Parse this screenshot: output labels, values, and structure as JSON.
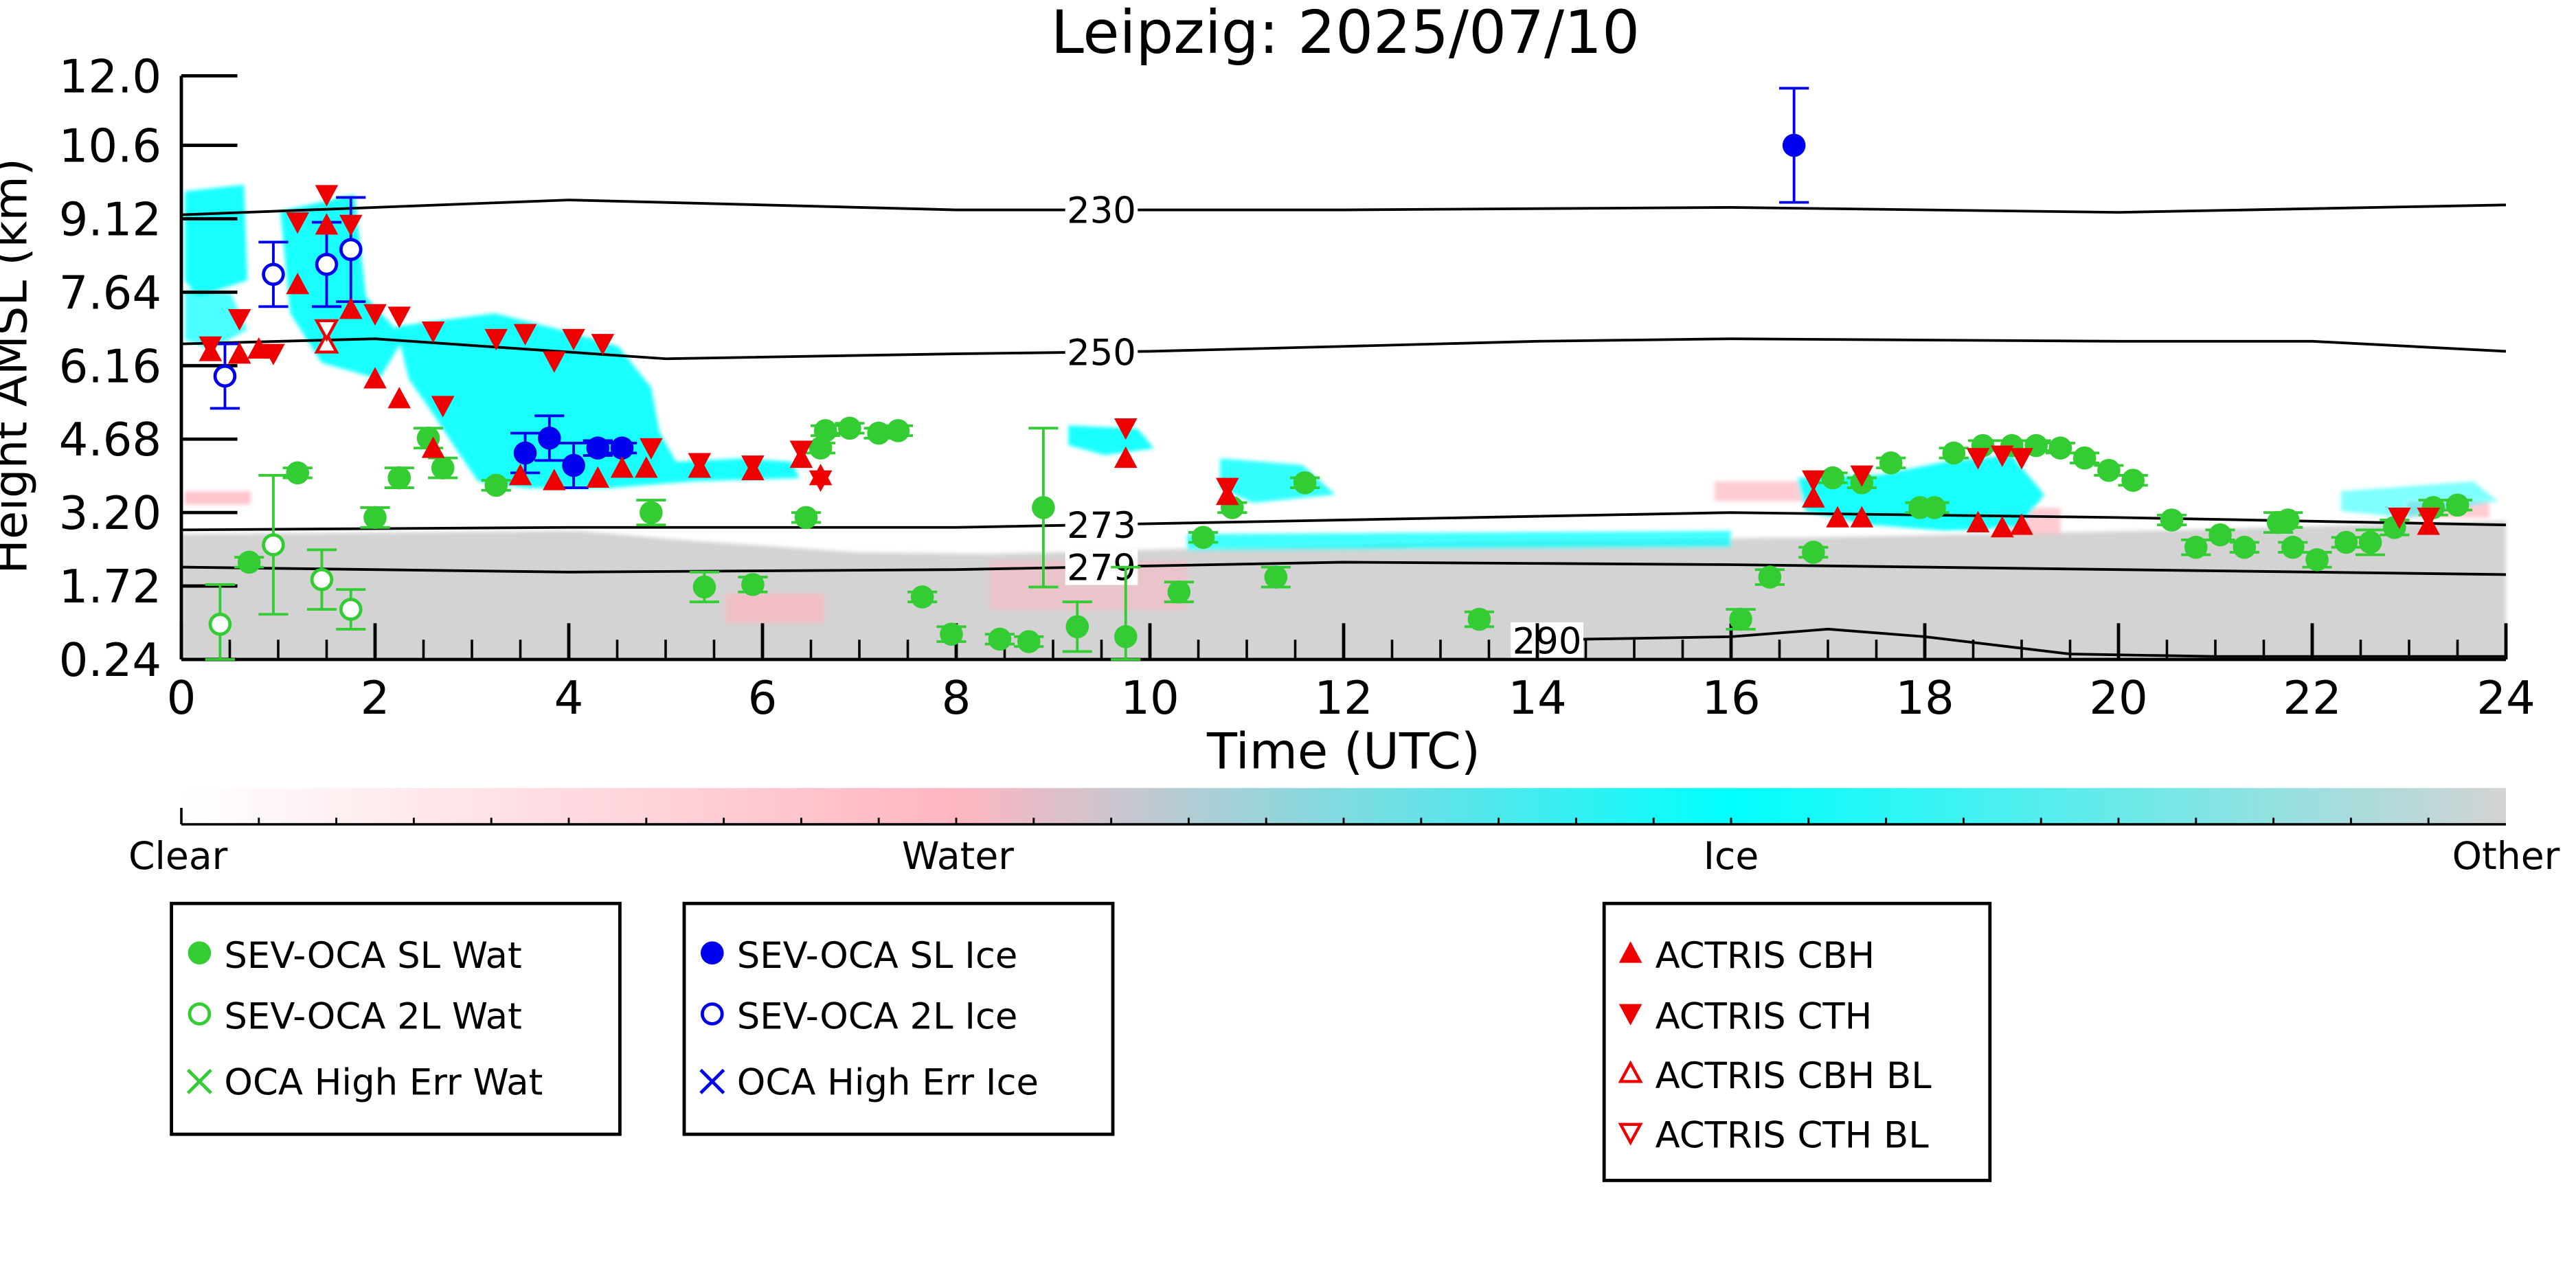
{
  "chart_data": {
    "type": "scatter",
    "title": "Leipzig: 2025/07/10",
    "xlabel": "Time (UTC)",
    "ylabel": "Height AMSL (km)",
    "xlim": [
      0,
      24
    ],
    "ylim": [
      0.24,
      12.0
    ],
    "xticks": [
      0,
      2,
      4,
      6,
      8,
      10,
      12,
      14,
      16,
      18,
      20,
      22,
      24
    ],
    "yticks": [
      0.24,
      1.72,
      3.2,
      4.68,
      6.16,
      7.64,
      9.12,
      10.6,
      12.0
    ],
    "ytick_labels": [
      "0.24",
      "1.72",
      "3.20",
      "4.68",
      "6.16",
      "7.64",
      "9.12",
      "10.6",
      "12.0"
    ],
    "grid": false,
    "colorbar": {
      "labels": [
        "Clear",
        "Water",
        "Ice",
        "Other"
      ],
      "colors": [
        "#ffffff",
        "#ffb6c1",
        "#00ffff",
        "#d3d3d3"
      ]
    },
    "isotherms": [
      {
        "label": "230",
        "label_x": 9.5,
        "points": [
          [
            0,
            9.2
          ],
          [
            4,
            9.5
          ],
          [
            8,
            9.3
          ],
          [
            12,
            9.3
          ],
          [
            16,
            9.35
          ],
          [
            20,
            9.25
          ],
          [
            24,
            9.4
          ]
        ]
      },
      {
        "label": "250",
        "label_x": 9.5,
        "points": [
          [
            0,
            6.6
          ],
          [
            2,
            6.7
          ],
          [
            5,
            6.3
          ],
          [
            8,
            6.4
          ],
          [
            10,
            6.45
          ],
          [
            12,
            6.55
          ],
          [
            14,
            6.65
          ],
          [
            16,
            6.7
          ],
          [
            20,
            6.65
          ],
          [
            22,
            6.65
          ],
          [
            24,
            6.45
          ]
        ]
      },
      {
        "label": "273",
        "label_x": 9.5,
        "points": [
          [
            0,
            2.85
          ],
          [
            4,
            2.9
          ],
          [
            8,
            2.9
          ],
          [
            12,
            3.05
          ],
          [
            16,
            3.2
          ],
          [
            20,
            3.1
          ],
          [
            24,
            2.95
          ]
        ]
      },
      {
        "label": "279",
        "label_x": 9.5,
        "points": [
          [
            0,
            2.1
          ],
          [
            4,
            2.0
          ],
          [
            8,
            2.05
          ],
          [
            12,
            2.2
          ],
          [
            16,
            2.15
          ],
          [
            20,
            2.05
          ],
          [
            24,
            1.95
          ]
        ]
      },
      {
        "label": "290",
        "label_x": 14.1,
        "points": [
          [
            13.8,
            0.6
          ],
          [
            14.5,
            0.65
          ],
          [
            16,
            0.7
          ],
          [
            17,
            0.85
          ],
          [
            18,
            0.7
          ],
          [
            19.5,
            0.35
          ],
          [
            21,
            0.3
          ],
          [
            24,
            0.3
          ]
        ]
      }
    ],
    "series": [
      {
        "name": "SEV-OCA SL Wat",
        "marker": "circle-filled",
        "color": "#33cc33",
        "points": [
          {
            "x": 0.7,
            "y": 2.2,
            "err": 0.1
          },
          {
            "x": 1.2,
            "y": 4.0,
            "err": 0.1
          },
          {
            "x": 2.0,
            "y": 3.1,
            "err": 0.2
          },
          {
            "x": 2.25,
            "y": 3.9,
            "err": 0.2
          },
          {
            "x": 2.55,
            "y": 4.7,
            "err": 0.2
          },
          {
            "x": 2.7,
            "y": 4.1,
            "err": 0.2
          },
          {
            "x": 3.25,
            "y": 3.75,
            "err": 0.1
          },
          {
            "x": 4.85,
            "y": 3.2,
            "err": 0.25
          },
          {
            "x": 5.4,
            "y": 1.7,
            "err": 0.3
          },
          {
            "x": 5.9,
            "y": 1.75,
            "err": 0.15
          },
          {
            "x": 6.45,
            "y": 3.1,
            "err": 0.1
          },
          {
            "x": 6.6,
            "y": 4.5,
            "err": 0.1
          },
          {
            "x": 6.65,
            "y": 4.85,
            "err": 0.1
          },
          {
            "x": 6.9,
            "y": 4.9,
            "err": 0.1
          },
          {
            "x": 7.2,
            "y": 4.8,
            "err": 0.1
          },
          {
            "x": 7.4,
            "y": 4.85,
            "err": 0.1
          },
          {
            "x": 7.65,
            "y": 1.5,
            "err": 0.1
          },
          {
            "x": 7.95,
            "y": 0.75,
            "err": 0.15
          },
          {
            "x": 8.45,
            "y": 0.65,
            "err": 0.1
          },
          {
            "x": 8.75,
            "y": 0.6,
            "err": 0.1
          },
          {
            "x": 8.9,
            "y": 3.3,
            "err": 1.6
          },
          {
            "x": 9.25,
            "y": 0.9,
            "err": 0.5
          },
          {
            "x": 9.75,
            "y": 0.7,
            "err": 1.4
          },
          {
            "x": 10.3,
            "y": 1.6,
            "err": 0.2
          },
          {
            "x": 10.55,
            "y": 2.7,
            "err": 0.1
          },
          {
            "x": 10.85,
            "y": 3.3,
            "err": 0.1
          },
          {
            "x": 11.3,
            "y": 1.9,
            "err": 0.2
          },
          {
            "x": 11.6,
            "y": 3.8,
            "err": 0.1
          },
          {
            "x": 13.4,
            "y": 1.05,
            "err": 0.15
          },
          {
            "x": 16.1,
            "y": 1.05,
            "err": 0.2
          },
          {
            "x": 16.4,
            "y": 1.9,
            "err": 0.15
          },
          {
            "x": 16.85,
            "y": 2.4,
            "err": 0.1
          },
          {
            "x": 17.05,
            "y": 3.9,
            "err": 0.1
          },
          {
            "x": 17.35,
            "y": 3.8,
            "err": 0.1
          },
          {
            "x": 17.65,
            "y": 4.2,
            "err": 0.1
          },
          {
            "x": 17.95,
            "y": 3.3,
            "err": 0.1
          },
          {
            "x": 18.1,
            "y": 3.3,
            "err": 0.1
          },
          {
            "x": 18.3,
            "y": 4.4,
            "err": 0.1
          },
          {
            "x": 18.6,
            "y": 4.55,
            "err": 0.1
          },
          {
            "x": 18.9,
            "y": 4.55,
            "err": 0.1
          },
          {
            "x": 19.15,
            "y": 4.55,
            "err": 0.1
          },
          {
            "x": 19.4,
            "y": 4.5,
            "err": 0.1
          },
          {
            "x": 19.65,
            "y": 4.3,
            "err": 0.1
          },
          {
            "x": 19.9,
            "y": 4.05,
            "err": 0.1
          },
          {
            "x": 20.15,
            "y": 3.85,
            "err": 0.1
          },
          {
            "x": 20.55,
            "y": 3.05,
            "err": 0.1
          },
          {
            "x": 20.8,
            "y": 2.5,
            "err": 0.15
          },
          {
            "x": 21.05,
            "y": 2.75,
            "err": 0.1
          },
          {
            "x": 21.3,
            "y": 2.5,
            "err": 0.1
          },
          {
            "x": 21.65,
            "y": 3.0,
            "err": 0.2
          },
          {
            "x": 21.75,
            "y": 3.05,
            "err": 0.15
          },
          {
            "x": 21.8,
            "y": 2.5,
            "err": 0.1
          },
          {
            "x": 22.05,
            "y": 2.25,
            "err": 0.15
          },
          {
            "x": 22.35,
            "y": 2.6,
            "err": 0.1
          },
          {
            "x": 22.6,
            "y": 2.6,
            "err": 0.25
          },
          {
            "x": 22.85,
            "y": 2.9,
            "err": 0.15
          },
          {
            "x": 23.25,
            "y": 3.3,
            "err": 0.15
          },
          {
            "x": 23.5,
            "y": 3.35,
            "err": 0.1
          }
        ]
      },
      {
        "name": "SEV-OCA 2L Wat",
        "marker": "circle-open",
        "color": "#33cc33",
        "points": [
          {
            "x": 0.4,
            "y": 0.95,
            "err": 0.8
          },
          {
            "x": 0.95,
            "y": 2.55,
            "err": 1.4
          },
          {
            "x": 1.45,
            "y": 1.85,
            "err": 0.6
          },
          {
            "x": 1.75,
            "y": 1.25,
            "err": 0.4
          }
        ]
      },
      {
        "name": "OCA High Err Wat",
        "marker": "x",
        "color": "#33cc33",
        "points": []
      },
      {
        "name": "SEV-OCA SL Ice",
        "marker": "circle-filled",
        "color": "#0000ee",
        "points": [
          {
            "x": 3.55,
            "y": 4.4,
            "err": 0.4
          },
          {
            "x": 3.8,
            "y": 4.7,
            "err": 0.45
          },
          {
            "x": 4.05,
            "y": 4.15,
            "err": 0.45
          },
          {
            "x": 4.3,
            "y": 4.5,
            "err": 0.15
          },
          {
            "x": 4.55,
            "y": 4.5,
            "err": 0.1
          },
          {
            "x": 16.65,
            "y": 10.6,
            "err": 1.15
          }
        ]
      },
      {
        "name": "SEV-OCA 2L Ice",
        "marker": "circle-open",
        "color": "#0000ee",
        "points": [
          {
            "x": 0.45,
            "y": 5.95,
            "err": 0.65
          },
          {
            "x": 0.95,
            "y": 8.0,
            "err": 0.65
          },
          {
            "x": 1.5,
            "y": 8.2,
            "err": 0.85
          },
          {
            "x": 1.75,
            "y": 8.5,
            "err": 1.05
          }
        ]
      },
      {
        "name": "OCA High Err Ice",
        "marker": "x",
        "color": "#0000ee",
        "points": []
      },
      {
        "name": "ACTRIS CBH",
        "marker": "triangle-up-filled",
        "color": "#ee0000",
        "points": [
          {
            "x": 0.3,
            "y": 6.45
          },
          {
            "x": 0.6,
            "y": 6.4
          },
          {
            "x": 0.8,
            "y": 6.5
          },
          {
            "x": 1.2,
            "y": 7.8
          },
          {
            "x": 1.5,
            "y": 9.0
          },
          {
            "x": 1.75,
            "y": 7.3
          },
          {
            "x": 2.0,
            "y": 5.9
          },
          {
            "x": 2.25,
            "y": 5.5
          },
          {
            "x": 2.6,
            "y": 4.5
          },
          {
            "x": 3.5,
            "y": 3.95
          },
          {
            "x": 3.85,
            "y": 3.85
          },
          {
            "x": 4.3,
            "y": 3.9
          },
          {
            "x": 4.55,
            "y": 4.1
          },
          {
            "x": 4.8,
            "y": 4.1
          },
          {
            "x": 5.35,
            "y": 4.1
          },
          {
            "x": 5.9,
            "y": 4.05
          },
          {
            "x": 6.4,
            "y": 4.3
          },
          {
            "x": 6.6,
            "y": 3.95
          },
          {
            "x": 9.75,
            "y": 4.3
          },
          {
            "x": 10.8,
            "y": 3.55
          },
          {
            "x": 16.85,
            "y": 3.5
          },
          {
            "x": 17.1,
            "y": 3.1
          },
          {
            "x": 17.35,
            "y": 3.1
          },
          {
            "x": 18.55,
            "y": 3.0
          },
          {
            "x": 18.8,
            "y": 2.9
          },
          {
            "x": 19.0,
            "y": 2.95
          },
          {
            "x": 23.2,
            "y": 2.95
          }
        ]
      },
      {
        "name": "ACTRIS CTH",
        "marker": "triangle-down-filled",
        "color": "#ee0000",
        "points": [
          {
            "x": 0.3,
            "y": 6.55
          },
          {
            "x": 0.6,
            "y": 7.1
          },
          {
            "x": 0.95,
            "y": 6.4
          },
          {
            "x": 1.2,
            "y": 9.05
          },
          {
            "x": 1.5,
            "y": 9.6
          },
          {
            "x": 1.75,
            "y": 9.0
          },
          {
            "x": 2.0,
            "y": 7.2
          },
          {
            "x": 2.25,
            "y": 7.15
          },
          {
            "x": 2.6,
            "y": 6.85
          },
          {
            "x": 2.7,
            "y": 5.35
          },
          {
            "x": 3.25,
            "y": 6.7
          },
          {
            "x": 3.55,
            "y": 6.8
          },
          {
            "x": 3.85,
            "y": 6.25
          },
          {
            "x": 4.05,
            "y": 6.7
          },
          {
            "x": 4.35,
            "y": 6.6
          },
          {
            "x": 4.85,
            "y": 4.5
          },
          {
            "x": 5.35,
            "y": 4.2
          },
          {
            "x": 5.9,
            "y": 4.15
          },
          {
            "x": 6.4,
            "y": 4.45
          },
          {
            "x": 6.6,
            "y": 3.85
          },
          {
            "x": 9.75,
            "y": 4.9
          },
          {
            "x": 10.8,
            "y": 3.7
          },
          {
            "x": 16.85,
            "y": 3.85
          },
          {
            "x": 17.35,
            "y": 3.95
          },
          {
            "x": 18.55,
            "y": 4.3
          },
          {
            "x": 18.8,
            "y": 4.35
          },
          {
            "x": 19.0,
            "y": 4.3
          },
          {
            "x": 23.2,
            "y": 3.1
          },
          {
            "x": 22.9,
            "y": 3.1
          }
        ]
      },
      {
        "name": "ACTRIS CBH BL",
        "marker": "triangle-up-open",
        "color": "#ee0000",
        "points": [
          {
            "x": 1.5,
            "y": 6.6
          }
        ]
      },
      {
        "name": "ACTRIS CTH BL",
        "marker": "triangle-down-open",
        "color": "#ee0000",
        "points": [
          {
            "x": 1.5,
            "y": 6.9
          }
        ]
      }
    ]
  }
}
